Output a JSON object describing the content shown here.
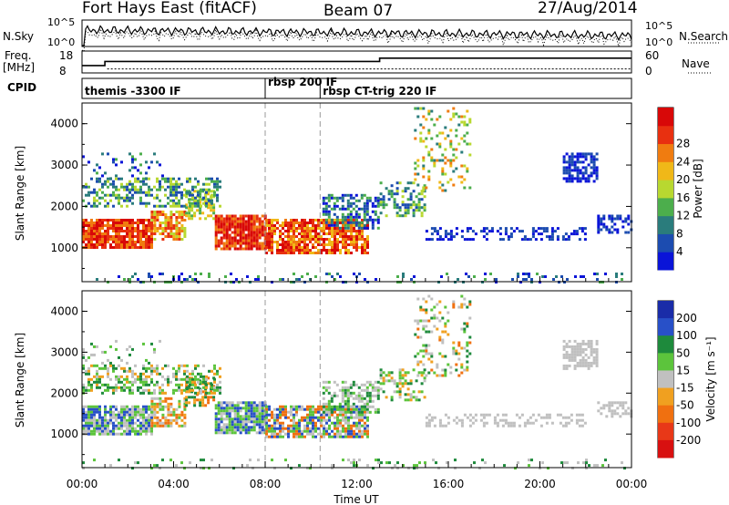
{
  "header": {
    "title": "Fort Hays East (fitACF)",
    "beam": "Beam 07",
    "date": "27/Aug/2014"
  },
  "chart_data": [
    {
      "type": "line",
      "panel": "noise",
      "left_label": "N.Sky",
      "right_label": "N.Search",
      "left_ticks": [
        "10^5",
        "10^0"
      ],
      "right_ticks": [
        "10^5",
        "10^0"
      ],
      "series": [
        {
          "name": "N.Sky",
          "style": "solid"
        },
        {
          "name": "N.Search",
          "style": "dotted"
        }
      ]
    },
    {
      "type": "line",
      "panel": "frequency",
      "left_label_lines": [
        "Freq.",
        "[MHz]"
      ],
      "right_label": "Nave",
      "left_ticks": [
        "18",
        "8"
      ],
      "right_ticks": [
        "60",
        "0"
      ],
      "freq_steps": [
        [
          0.0,
          12.5
        ],
        [
          1.0,
          15.0
        ],
        [
          13.0,
          17.0
        ],
        [
          24.0,
          17.0
        ]
      ],
      "nave_value": 12
    },
    {
      "type": "table",
      "panel": "cpid",
      "label": "CPID",
      "segments": [
        {
          "start_h": 0.0,
          "text": "themis -3300 IF"
        },
        {
          "start_h": 8.0,
          "text": "rbsp 200 IF"
        },
        {
          "start_h": 10.4,
          "text": "rbsp CT-trig 220 IF"
        }
      ]
    },
    {
      "type": "heatmap",
      "panel": "power",
      "ylabel": "Slant Range [km]",
      "yticks": [
        1000,
        2000,
        3000,
        4000
      ],
      "ylim": [
        180,
        4500
      ],
      "colorbar": {
        "label": "Power [dB]",
        "ticks": [
          4,
          8,
          12,
          16,
          20,
          24,
          28
        ],
        "colors": [
          "#0a14d8",
          "#1c4cb0",
          "#2a7c7c",
          "#4cae4c",
          "#b8d830",
          "#f0b818",
          "#f07c10",
          "#e83010",
          "#d80808"
        ]
      }
    },
    {
      "type": "heatmap",
      "panel": "velocity",
      "ylabel": "Slant Range [km]",
      "yticks": [
        1000,
        2000,
        3000,
        4000
      ],
      "ylim": [
        180,
        4500
      ],
      "colorbar": {
        "label": "Velocity [m s⁻¹]",
        "ticks": [
          200,
          100,
          50,
          15,
          -15,
          -50,
          -100,
          -200
        ],
        "colors": [
          "#1a2ca8",
          "#2850c8",
          "#1e8a3c",
          "#5cc43c",
          "#c0c0c0",
          "#f0a020",
          "#f07010",
          "#e83818",
          "#d81010"
        ]
      }
    }
  ],
  "x_axis": {
    "label": "Time UT",
    "ticks": [
      "00:00",
      "04:00",
      "08:00",
      "12:00",
      "16:00",
      "20:00",
      "00:00"
    ],
    "range_hours": [
      0,
      24
    ]
  }
}
